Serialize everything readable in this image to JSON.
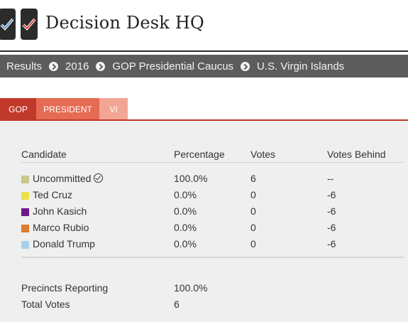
{
  "header": {
    "title": "Decision Desk HQ",
    "logo_icons": [
      "checkmark-blue-icon",
      "checkmark-red-icon"
    ],
    "colors": {
      "logo_bg": "#2b2b2b",
      "check_blue": "#5b9bd5",
      "check_red": "#d9463a"
    }
  },
  "breadcrumb": {
    "items": [
      "Results",
      "2016",
      "GOP Presidential Caucus",
      "U.S. Virgin Islands"
    ],
    "separator_icon": "chevron-circle-right-icon"
  },
  "tabs": [
    {
      "label": "GOP",
      "color": "#c0392b"
    },
    {
      "label": "PRESIDENT",
      "color": "#e56b55"
    },
    {
      "label": "VI",
      "color": "#f3a594"
    }
  ],
  "table": {
    "columns": [
      "Candidate",
      "Percentage",
      "Votes",
      "Votes Behind"
    ],
    "rows": [
      {
        "name": "Uncommitted",
        "winner": true,
        "color": "#c8c88a",
        "percentage": "100.0%",
        "votes": "6",
        "behind": "--"
      },
      {
        "name": "Ted Cruz",
        "winner": false,
        "color": "#ece04a",
        "percentage": "0.0%",
        "votes": "0",
        "behind": "-6"
      },
      {
        "name": "John Kasich",
        "winner": false,
        "color": "#6a1a8a",
        "percentage": "0.0%",
        "votes": "0",
        "behind": "-6"
      },
      {
        "name": "Marco Rubio",
        "winner": false,
        "color": "#e07a2c",
        "percentage": "0.0%",
        "votes": "0",
        "behind": "-6"
      },
      {
        "name": "Donald Trump",
        "winner": false,
        "color": "#a8d0ea",
        "percentage": "0.0%",
        "votes": "0",
        "behind": "-6"
      }
    ]
  },
  "summary": {
    "precincts_label": "Precincts Reporting",
    "precincts_value": "100.0%",
    "total_label": "Total Votes",
    "total_value": "6"
  }
}
